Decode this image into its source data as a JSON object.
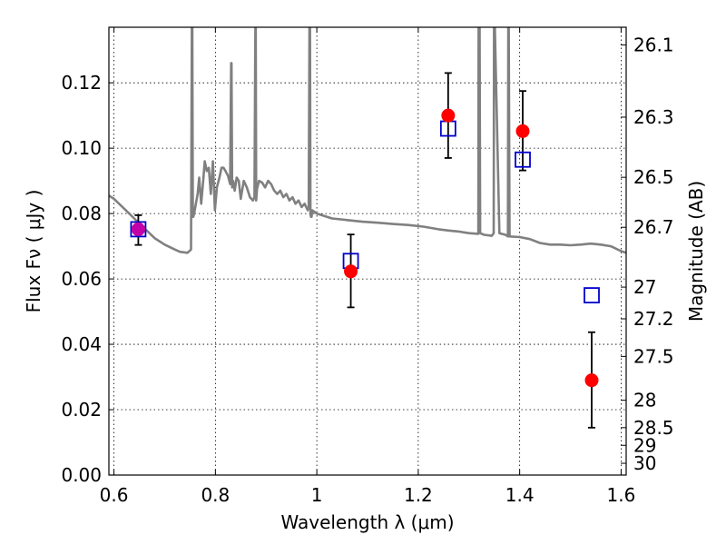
{
  "chart_data": {
    "type": "scatter",
    "xlabel": "Wavelength  λ (μm)",
    "ylabel": "Flux  Fν  ( μJy )",
    "ylabel_right": "Magnitude (AB)",
    "xlim": [
      0.59,
      1.61
    ],
    "ylim": [
      0.0,
      0.137
    ],
    "grid": true,
    "x_ticks": [
      {
        "value": 0.6,
        "label": "0.6"
      },
      {
        "value": 0.8,
        "label": "0.8"
      },
      {
        "value": 1.0,
        "label": "1"
      },
      {
        "value": 1.2,
        "label": "1.2"
      },
      {
        "value": 1.4,
        "label": "1.4"
      },
      {
        "value": 1.6,
        "label": "1.6"
      }
    ],
    "y_ticks": [
      {
        "value": 0.0,
        "label": "0.00"
      },
      {
        "value": 0.02,
        "label": "0.02"
      },
      {
        "value": 0.04,
        "label": "0.04"
      },
      {
        "value": 0.06,
        "label": "0.06"
      },
      {
        "value": 0.08,
        "label": "0.08"
      },
      {
        "value": 0.1,
        "label": "0.10"
      },
      {
        "value": 0.12,
        "label": "0.12"
      }
    ],
    "right_ticks": [
      {
        "label": "26.1",
        "flux": 0.1316
      },
      {
        "label": "26.3",
        "flux": 0.1095
      },
      {
        "label": "26.5",
        "flux": 0.0911
      },
      {
        "label": "26.7",
        "flux": 0.0758
      },
      {
        "label": "27",
        "flux": 0.0575
      },
      {
        "label": "27.2",
        "flux": 0.0478
      },
      {
        "label": "27.5",
        "flux": 0.0363
      },
      {
        "label": "28",
        "flux": 0.0229
      },
      {
        "label": "28.5",
        "flux": 0.0145
      },
      {
        "label": "29",
        "flux": 0.0091
      },
      {
        "label": "30",
        "flux": 0.0036
      }
    ],
    "series": [
      {
        "kind": "observed",
        "color": "#ff0000",
        "points": [
          {
            "x": 0.648,
            "y": 0.0752,
            "err_low": 0.0048,
            "err_high": 0.0043
          },
          {
            "x": 1.067,
            "y": 0.0623,
            "err_low": 0.011,
            "err_high": 0.0113
          },
          {
            "x": 1.259,
            "y": 0.11,
            "err_low": 0.013,
            "err_high": 0.013
          },
          {
            "x": 1.406,
            "y": 0.1052,
            "err_low": 0.012,
            "err_high": 0.0123
          },
          {
            "x": 1.542,
            "y": 0.029,
            "err_low": 0.0145,
            "err_high": 0.0147
          }
        ]
      },
      {
        "kind": "model-photometry",
        "color": "#0000cc",
        "points": [
          {
            "x": 0.648,
            "y": 0.0752
          },
          {
            "x": 1.067,
            "y": 0.0655
          },
          {
            "x": 1.259,
            "y": 0.106
          },
          {
            "x": 1.406,
            "y": 0.0965
          },
          {
            "x": 1.542,
            "y": 0.055
          }
        ]
      }
    ],
    "model_spectrum": {
      "color": "#808080",
      "x": [
        0.59,
        0.6,
        0.62,
        0.64,
        0.66,
        0.68,
        0.7,
        0.72,
        0.73,
        0.745,
        0.752,
        0.7535,
        0.7545,
        0.7555,
        0.7565,
        0.758,
        0.765,
        0.768,
        0.772,
        0.776,
        0.779,
        0.783,
        0.787,
        0.791,
        0.795,
        0.799,
        0.803,
        0.808,
        0.812,
        0.816,
        0.82,
        0.825,
        0.829,
        0.831,
        0.8318,
        0.833,
        0.835,
        0.838,
        0.842,
        0.846,
        0.85,
        0.856,
        0.862,
        0.868,
        0.874,
        0.877,
        0.8788,
        0.8795,
        0.8805,
        0.882,
        0.886,
        0.892,
        0.898,
        0.904,
        0.91,
        0.916,
        0.922,
        0.928,
        0.934,
        0.94,
        0.946,
        0.952,
        0.958,
        0.964,
        0.97,
        0.976,
        0.982,
        0.984,
        0.9855,
        0.9865,
        0.9875,
        0.9885,
        0.9895,
        0.991,
        1.0,
        1.03,
        1.06,
        1.09,
        1.12,
        1.15,
        1.18,
        1.21,
        1.24,
        1.26,
        1.28,
        1.3,
        1.3185,
        1.319,
        1.321,
        1.322,
        1.33,
        1.345,
        1.3488,
        1.3495,
        1.351,
        1.36,
        1.372,
        1.3768,
        1.3775,
        1.3785,
        1.38,
        1.4,
        1.42,
        1.44,
        1.46,
        1.48,
        1.5,
        1.52,
        1.54,
        1.56,
        1.58,
        1.6,
        1.61
      ],
      "y": [
        0.0855,
        0.0845,
        0.0815,
        0.0785,
        0.0755,
        0.0725,
        0.0705,
        0.069,
        0.0683,
        0.068,
        0.069,
        0.137,
        0.137,
        0.079,
        0.079,
        0.08,
        0.086,
        0.091,
        0.083,
        0.09,
        0.096,
        0.093,
        0.094,
        0.086,
        0.096,
        0.081,
        0.088,
        0.091,
        0.094,
        0.094,
        0.093,
        0.0915,
        0.089,
        0.126,
        0.126,
        0.088,
        0.09,
        0.087,
        0.091,
        0.09,
        0.0845,
        0.09,
        0.088,
        0.085,
        0.084,
        0.085,
        0.137,
        0.137,
        0.084,
        0.0875,
        0.09,
        0.0895,
        0.088,
        0.09,
        0.089,
        0.087,
        0.086,
        0.087,
        0.085,
        0.086,
        0.084,
        0.085,
        0.083,
        0.084,
        0.082,
        0.083,
        0.081,
        0.082,
        0.137,
        0.137,
        0.08,
        0.079,
        0.079,
        0.081,
        0.08,
        0.0785,
        0.078,
        0.0775,
        0.0772,
        0.0768,
        0.0765,
        0.076,
        0.0752,
        0.0748,
        0.0745,
        0.074,
        0.0738,
        0.137,
        0.137,
        0.074,
        0.0735,
        0.0732,
        0.074,
        0.137,
        0.137,
        0.074,
        0.0735,
        0.073,
        0.137,
        0.137,
        0.073,
        0.0728,
        0.0722,
        0.071,
        0.0705,
        0.0705,
        0.0703,
        0.0705,
        0.0708,
        0.0705,
        0.07,
        0.0685,
        0.068
      ]
    }
  }
}
